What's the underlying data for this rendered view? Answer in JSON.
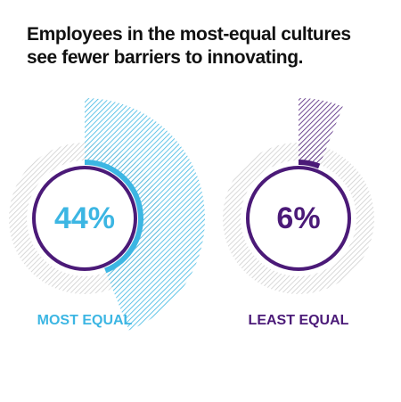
{
  "chart_data": {
    "type": "radial",
    "title": "Employees in the most-equal cultures see fewer barriers to innovating.",
    "categories": [
      "MOST EQUAL",
      "LEAST EQUAL"
    ],
    "values": [
      44,
      6
    ],
    "value_labels": [
      "44%",
      "6%"
    ],
    "colors": [
      "#3cb6e3",
      "#4b1a78"
    ]
  }
}
